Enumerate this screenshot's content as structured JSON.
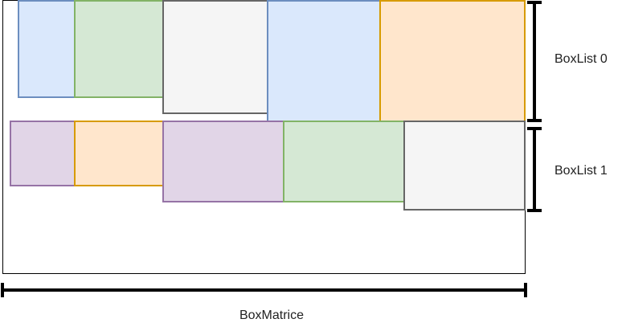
{
  "labels": {
    "row0": "BoxList 0",
    "row1": "BoxList 1",
    "width": "BoxMatrice"
  },
  "palette": {
    "blue": {
      "fill": "#dae8fc",
      "stroke": "#6c8ebf"
    },
    "green": {
      "fill": "#d5e8d4",
      "stroke": "#82b366"
    },
    "gray": {
      "fill": "#f5f5f5",
      "stroke": "#666666"
    },
    "orange": {
      "fill": "#ffe6cc",
      "stroke": "#d79b00"
    },
    "purple": {
      "fill": "#e1d5e7",
      "stroke": "#9673a6"
    }
  },
  "rows": [
    {
      "boxes": [
        {
          "color": "blue"
        },
        {
          "color": "green"
        },
        {
          "color": "gray"
        },
        {
          "color": "blue"
        },
        {
          "color": "orange"
        }
      ]
    },
    {
      "boxes": [
        {
          "color": "purple"
        },
        {
          "color": "orange"
        },
        {
          "color": "purple"
        },
        {
          "color": "green"
        },
        {
          "color": "gray"
        }
      ]
    }
  ]
}
